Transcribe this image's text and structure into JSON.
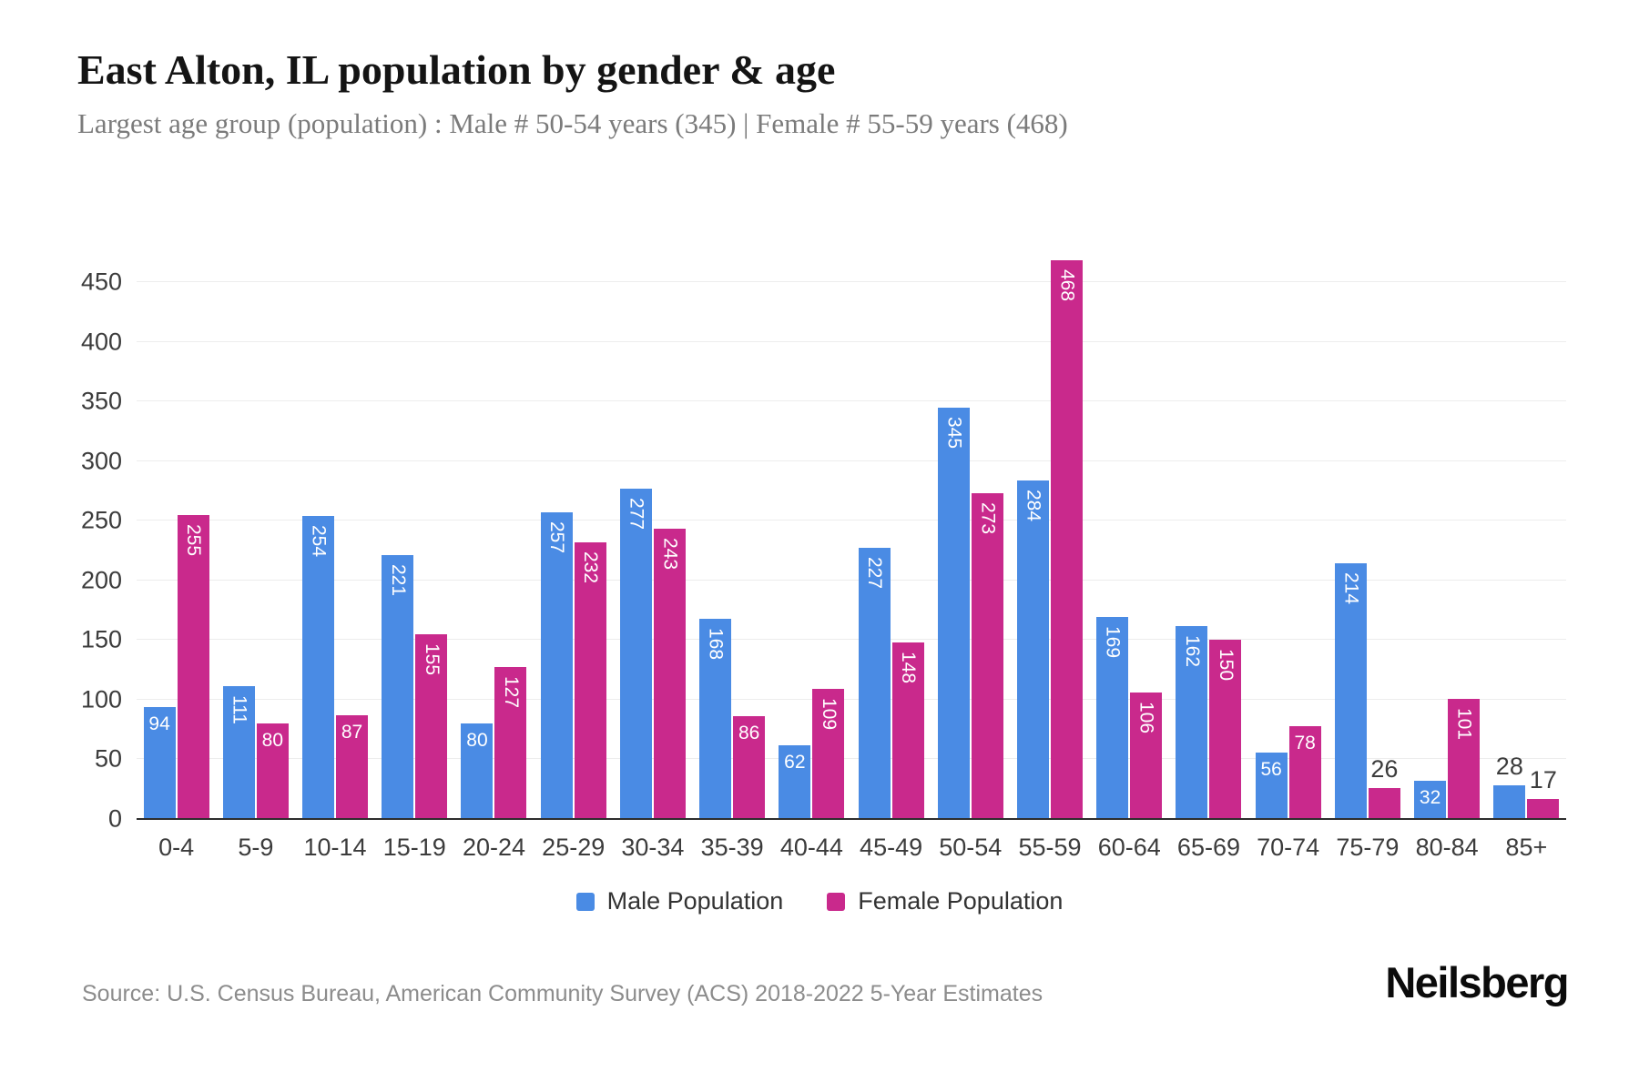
{
  "page": {
    "title": "East Alton, IL population by gender & age",
    "subtitle": "Largest age group (population) : Male # 50-54 years (345) | Female # 55-59 years (468)",
    "source": "Source: U.S. Census Bureau, American Community Survey (ACS) 2018-2022 5-Year Estimates",
    "brand": "Neilsberg"
  },
  "chart_data": {
    "type": "bar",
    "title": "East Alton, IL population by gender & age",
    "categories": [
      "0-4",
      "5-9",
      "10-14",
      "15-19",
      "20-24",
      "25-29",
      "30-34",
      "35-39",
      "40-44",
      "45-49",
      "50-54",
      "55-59",
      "60-64",
      "65-69",
      "70-74",
      "75-79",
      "80-84",
      "85+"
    ],
    "series": [
      {
        "name": "Male Population",
        "color": "#4a8be4",
        "values": [
          94,
          111,
          254,
          221,
          80,
          257,
          277,
          168,
          62,
          227,
          345,
          284,
          169,
          162,
          56,
          214,
          32,
          28
        ]
      },
      {
        "name": "Female Population",
        "color": "#c9298c",
        "values": [
          255,
          80,
          87,
          155,
          127,
          232,
          243,
          86,
          109,
          148,
          273,
          468,
          106,
          150,
          78,
          26,
          101,
          17
        ]
      }
    ],
    "xlabel": "",
    "ylabel": "",
    "ylim": [
      0,
      468
    ],
    "yticks": [
      0,
      50,
      100,
      150,
      200,
      250,
      300,
      350,
      400,
      450
    ],
    "grid": "horizontal",
    "legend_position": "bottom",
    "background": "#ffffff",
    "label_color_inside": "#ffffff",
    "label_color_outside": "#3c3c3c"
  }
}
